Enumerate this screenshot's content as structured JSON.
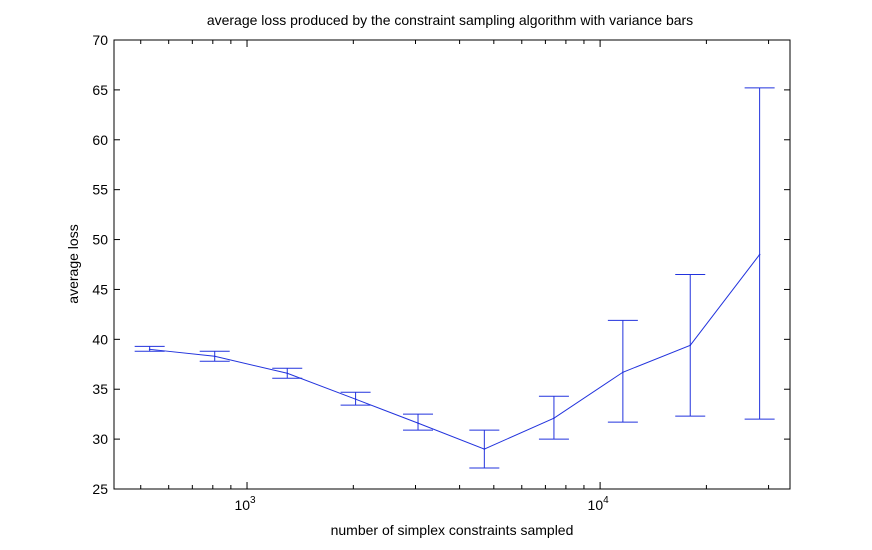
{
  "chart_data": {
    "type": "line",
    "title": "average loss produced by the constraint sampling algorithm with variance bars",
    "xlabel": "number of simplex constraints sampled",
    "ylabel": "average loss",
    "x_scale": "log",
    "xlim": [
      420,
      34500
    ],
    "ylim": [
      25,
      70
    ],
    "x_ticks": [
      {
        "value": 1000,
        "base": "10",
        "exponent": "3"
      },
      {
        "value": 10000,
        "base": "10",
        "exponent": "4"
      }
    ],
    "y_ticks": [
      {
        "value": 25,
        "label": "25"
      },
      {
        "value": 30,
        "label": "30"
      },
      {
        "value": 35,
        "label": "35"
      },
      {
        "value": 40,
        "label": "40"
      },
      {
        "value": 45,
        "label": "45"
      },
      {
        "value": 50,
        "label": "50"
      },
      {
        "value": 55,
        "label": "55"
      },
      {
        "value": 60,
        "label": "60"
      },
      {
        "value": 65,
        "label": "65"
      },
      {
        "value": 70,
        "label": "70"
      }
    ],
    "series": [
      {
        "name": "average loss",
        "color": "#2233dd",
        "points": [
          {
            "x": 530,
            "y": 39.0,
            "low": 38.8,
            "high": 39.3
          },
          {
            "x": 810,
            "y": 38.3,
            "low": 37.8,
            "high": 38.8
          },
          {
            "x": 1300,
            "y": 36.6,
            "low": 36.1,
            "high": 37.1
          },
          {
            "x": 2030,
            "y": 34.0,
            "low": 33.4,
            "high": 34.7
          },
          {
            "x": 3050,
            "y": 31.6,
            "low": 30.9,
            "high": 32.5
          },
          {
            "x": 4700,
            "y": 29.0,
            "low": 27.1,
            "high": 30.9
          },
          {
            "x": 7400,
            "y": 32.1,
            "low": 30.0,
            "high": 34.3
          },
          {
            "x": 11600,
            "y": 36.7,
            "low": 31.7,
            "high": 41.9
          },
          {
            "x": 18000,
            "y": 39.4,
            "low": 32.3,
            "high": 46.5
          },
          {
            "x": 28300,
            "y": 48.5,
            "low": 32.0,
            "high": 65.2
          }
        ]
      }
    ]
  }
}
